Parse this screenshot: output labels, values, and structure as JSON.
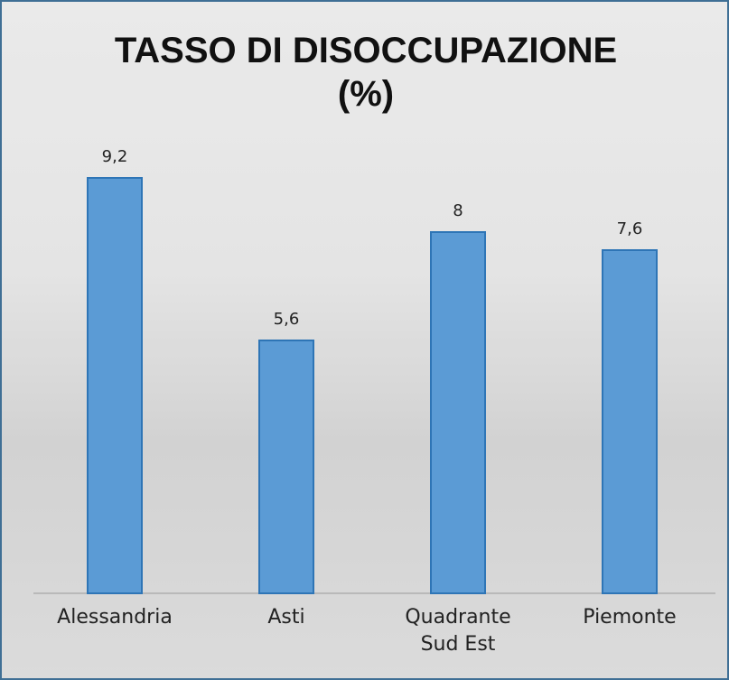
{
  "chart_data": {
    "type": "bar",
    "title": "TASSO DI DISOCCUPAZIONE (%)",
    "categories": [
      "Alessandria",
      "Asti",
      "Quadrante Sud Est",
      "Piemonte"
    ],
    "values": [
      9.2,
      5.6,
      8,
      7.6
    ],
    "value_labels": [
      "9,2",
      "5,6",
      "8",
      "7,6"
    ],
    "color": "#5b9bd5",
    "ylim": [
      0,
      10
    ]
  }
}
